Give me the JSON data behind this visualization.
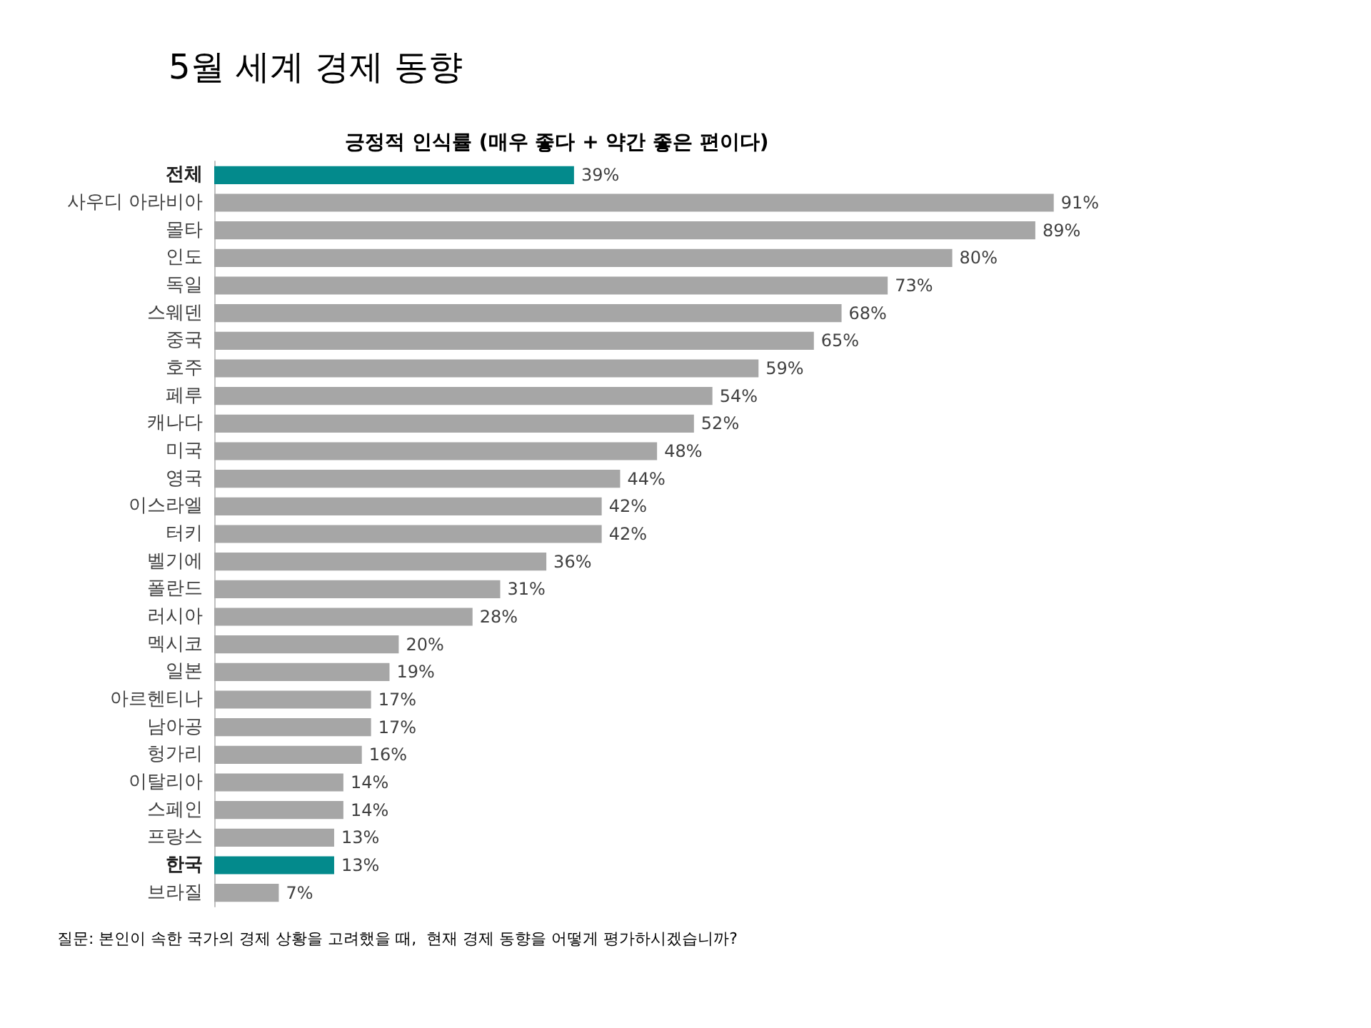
{
  "chart_data": {
    "type": "bar",
    "orientation": "horizontal",
    "title": "5월 세계 경제 동향",
    "subtitle": "긍정적 인식률 (매우 좋다 + 약간 좋은 편이다)",
    "categories": [
      "전체",
      "사우디 아라비아",
      "몰타",
      "인도",
      "독일",
      "스웨덴",
      "중국",
      "호주",
      "페루",
      "캐나다",
      "미국",
      "영국",
      "이스라엘",
      "터키",
      "벨기에",
      "폴란드",
      "러시아",
      "멕시코",
      "일본",
      "아르헨티나",
      "남아공",
      "헝가리",
      "이탈리아",
      "스페인",
      "프랑스",
      "한국",
      "브라질"
    ],
    "values": [
      39,
      91,
      89,
      80,
      73,
      68,
      65,
      59,
      54,
      52,
      48,
      44,
      42,
      42,
      36,
      31,
      28,
      20,
      19,
      17,
      17,
      16,
      14,
      14,
      13,
      13,
      7
    ],
    "colors": [
      "#038a8c",
      "#a6a6a6",
      "#a6a6a6",
      "#a6a6a6",
      "#a6a6a6",
      "#a6a6a6",
      "#a6a6a6",
      "#a6a6a6",
      "#a6a6a6",
      "#a6a6a6",
      "#a6a6a6",
      "#a6a6a6",
      "#a6a6a6",
      "#a6a6a6",
      "#a6a6a6",
      "#a6a6a6",
      "#a6a6a6",
      "#a6a6a6",
      "#a6a6a6",
      "#a6a6a6",
      "#a6a6a6",
      "#a6a6a6",
      "#a6a6a6",
      "#a6a6a6",
      "#a6a6a6",
      "#038a8c",
      "#a6a6a6"
    ],
    "value_labels": [
      "39%",
      "91%",
      "89%",
      "80%",
      "73%",
      "68%",
      "65%",
      "59%",
      "54%",
      "52%",
      "48%",
      "44%",
      "42%",
      "42%",
      "36%",
      "31%",
      "28%",
      "20%",
      "19%",
      "17%",
      "17%",
      "16%",
      "14%",
      "14%",
      "13%",
      "13%",
      "7%"
    ],
    "annotations": [
      "질문: 본인이 속한 국가의 경제 상황을 고려했을 때,  현재 경제 동향을 어떻게 평가하시겠습니까?"
    ],
    "grid": false
  }
}
